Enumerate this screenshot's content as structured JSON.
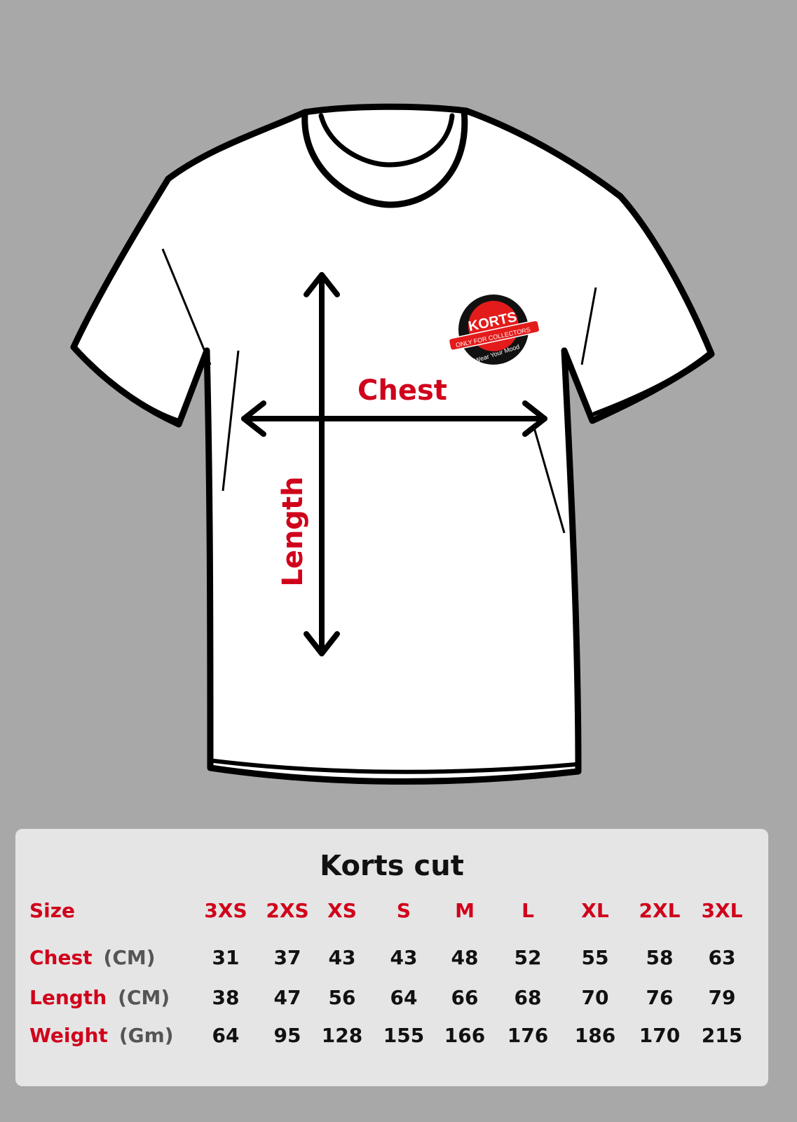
{
  "diagram": {
    "chest_label": "Chest",
    "length_label": "Length",
    "logo": {
      "brand": "KORTS",
      "banner": "ONLY FOR COLLECTORS",
      "tagline": "Wear Your Mood"
    }
  },
  "colors": {
    "accent": "#d0021b",
    "background": "#a8a8a8",
    "panel": "#e5e5e5"
  },
  "table": {
    "title": "Korts cut",
    "header_label": "Size",
    "sizes": [
      "3XS",
      "2XS",
      "XS",
      "S",
      "M",
      "L",
      "XL",
      "2XL",
      "3XL"
    ],
    "rows": [
      {
        "label": "Chest",
        "unit": "(CM)",
        "values": [
          "31",
          "37",
          "43",
          "43",
          "48",
          "52",
          "55",
          "58",
          "63"
        ]
      },
      {
        "label": "Length",
        "unit": "(CM)",
        "values": [
          "38",
          "47",
          "56",
          "64",
          "66",
          "68",
          "70",
          "76",
          "79"
        ]
      },
      {
        "label": "Weight",
        "unit": "(Gm)",
        "values": [
          "64",
          "95",
          "128",
          "155",
          "166",
          "176",
          "186",
          "170",
          "215"
        ]
      }
    ]
  }
}
